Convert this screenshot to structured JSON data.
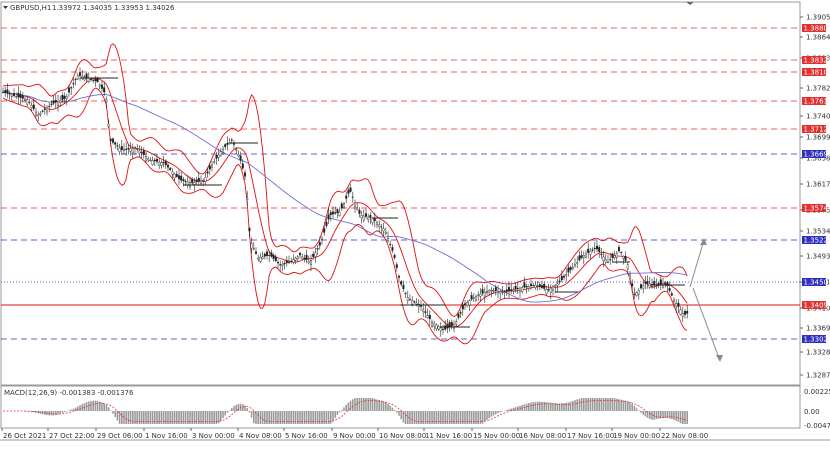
{
  "header": {
    "symbol_label": "GBPUSD,H1",
    "ohlc": "1.33972 1.34035 1.33953 1.34026"
  },
  "macd": {
    "label": "MACD(12,26,9) -0.001383 -0.001376",
    "ticks": [
      "0.002258",
      "0.00",
      "-0.004723"
    ]
  },
  "price_axis": {
    "ticks": [
      "1.39055",
      "1.38645",
      "1.38230",
      "1.37820",
      "1.37405",
      "1.36995",
      "1.36580",
      "1.36170",
      "1.35755",
      "1.35345",
      "1.34930",
      "1.34515",
      "1.34105",
      "1.33695",
      "1.33280",
      "1.32870"
    ]
  },
  "level_labels": [
    {
      "text": "1.38807",
      "color": "#e03030"
    },
    {
      "text": "1.38329",
      "color": "#e03030"
    },
    {
      "text": "1.38109",
      "color": "#e03030"
    },
    {
      "text": "1.37617",
      "color": "#e03030"
    },
    {
      "text": "1.37121",
      "color": "#e03030"
    },
    {
      "text": "1.36690",
      "color": "#3030c0"
    },
    {
      "text": "1.35749",
      "color": "#e03030"
    },
    {
      "text": "1.35221",
      "color": "#3030c0"
    },
    {
      "text": "1.34501",
      "color": "#3030c0"
    },
    {
      "text": "1.34094",
      "color": "#e03030"
    },
    {
      "text": "1.33028",
      "color": "#3030c0"
    }
  ],
  "time_axis": {
    "ticks": [
      "26 Oct 2021",
      "27 Oct 22:00",
      "29 Oct 06:00",
      "1 Nov 16:00",
      "3 Nov 00:00",
      "4 Nov 08:00",
      "5 Nov 16:00",
      "9 Nov 00:00",
      "10 Nov 08:00",
      "11 Nov 16:00",
      "15 Nov 00:00",
      "16 Nov 08:00",
      "17 Nov 16:00",
      "19 Nov 00:00",
      "22 Nov 08:00"
    ]
  },
  "colors": {
    "band": "#e01010",
    "ma": "#7070d0",
    "red_level": "#e03030",
    "blue_level": "#3030c0",
    "current_price": "#e01010"
  }
}
